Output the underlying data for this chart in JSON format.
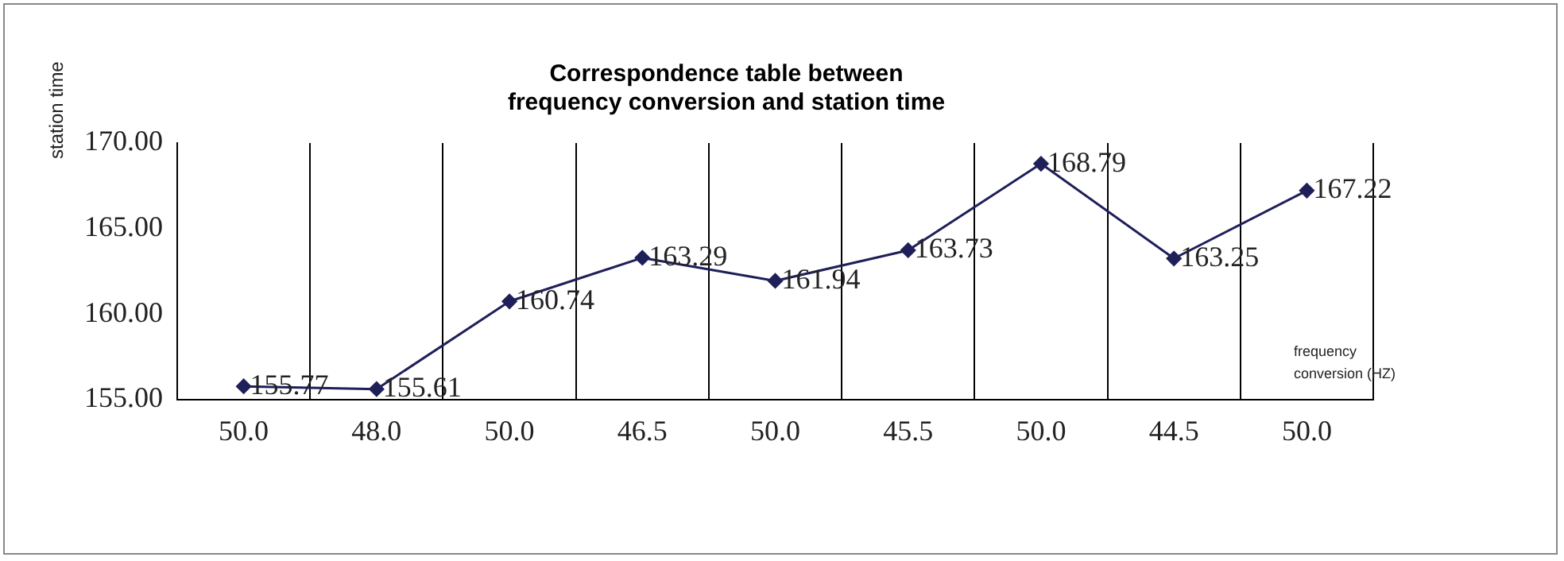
{
  "chart_data": {
    "type": "line",
    "title": "Correspondence table between frequency conversion and station time",
    "xlabel": "frequency conversion (HZ)",
    "ylabel": "station time",
    "categories": [
      "50.0",
      "48.0",
      "50.0",
      "46.5",
      "50.0",
      "45.5",
      "50.0",
      "44.5",
      "50.0"
    ],
    "series": [
      {
        "color": "#1f1f5a",
        "values": [
          155.77,
          155.61,
          160.74,
          163.29,
          161.94,
          163.73,
          168.79,
          163.25,
          167.22
        ]
      }
    ],
    "ylim": [
      155,
      170
    ],
    "yticks": [
      {
        "value": 155,
        "label": "155.00"
      },
      {
        "value": 160,
        "label": "160.00"
      },
      {
        "value": 165,
        "label": "165.00"
      },
      {
        "value": 170,
        "label": "170.00"
      }
    ],
    "grid": "x",
    "legend": false,
    "marker": "diamond",
    "line_style": "solid",
    "data_labels": true
  }
}
